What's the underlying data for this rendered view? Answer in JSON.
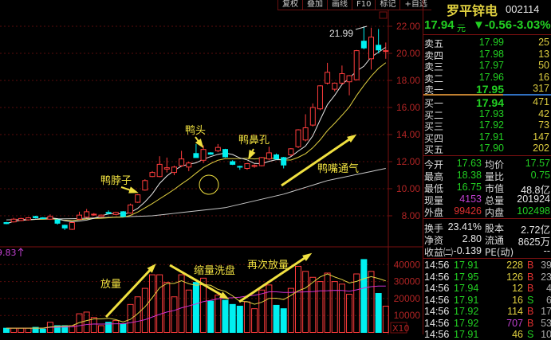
{
  "toolbar": {
    "buttons": [
      "复权",
      "叠加",
      "画线",
      "F10",
      "标记",
      "+自选"
    ]
  },
  "stock": {
    "name": "罗平锌电",
    "code": "002114",
    "price": "17.94",
    "unit": "元",
    "change": "▼-0.56",
    "change_pct": "-3.03%"
  },
  "asks": [
    {
      "label": "卖五",
      "price": "17.99",
      "qty": "25"
    },
    {
      "label": "卖四",
      "price": "17.98",
      "qty": "13"
    },
    {
      "label": "卖三",
      "price": "17.97",
      "qty": "50"
    },
    {
      "label": "卖二",
      "price": "17.96",
      "qty": "16"
    },
    {
      "label": "卖一",
      "price": "17.95",
      "qty": "317"
    }
  ],
  "bids": [
    {
      "label": "买一",
      "price": "17.94",
      "qty": "471"
    },
    {
      "label": "买二",
      "price": "17.93",
      "qty": "42"
    },
    {
      "label": "买三",
      "price": "17.92",
      "qty": "73"
    },
    {
      "label": "买四",
      "price": "17.91",
      "qty": "147"
    },
    {
      "label": "买五",
      "price": "17.90",
      "qty": "202"
    }
  ],
  "stats": [
    {
      "l1": "今开",
      "v1": "17.63",
      "c1": "g",
      "l2": "均价",
      "v2": "17.57",
      "c2": "g"
    },
    {
      "l1": "最高",
      "v1": "18.38",
      "c1": "g",
      "l2": "量比",
      "v2": "0.75",
      "c2": "g"
    },
    {
      "l1": "最低",
      "v1": "16.75",
      "c1": "g",
      "l2": "市值",
      "v2": "48.8亿",
      "c2": "w"
    },
    {
      "l1": "现量",
      "v1": "4153",
      "c1": "m",
      "l2": "总量",
      "v2": "201924",
      "c2": "w"
    },
    {
      "l1": "外盘",
      "v1": "99426",
      "c1": "r",
      "l2": "内盘",
      "v2": "102498",
      "c2": "g"
    }
  ],
  "stats2": [
    {
      "l1": "换手",
      "v1": "23.41%",
      "l2": "股本",
      "v2": "2.72亿"
    },
    {
      "l1": "净资",
      "v1": "2.80",
      "l2": "流通",
      "v2": "8625万"
    },
    {
      "l1": "收益㈡",
      "v1": "-0.139",
      "l2": "PE(动)",
      "v2": "--"
    }
  ],
  "trades": [
    {
      "time": "14:56",
      "price": "17.91",
      "vol": "228",
      "side": "B",
      "count": "39",
      "vol_color": "y"
    },
    {
      "time": "14:56",
      "price": "17.95",
      "vol": "126",
      "side": "B",
      "count": "23",
      "vol_color": "y"
    },
    {
      "time": "14:56",
      "price": "17.94",
      "vol": "12",
      "side": "B",
      "count": "4",
      "vol_color": "y"
    },
    {
      "time": "14:56",
      "price": "17.91",
      "vol": "16",
      "side": "S",
      "count": "6",
      "vol_color": "y"
    },
    {
      "time": "14:56",
      "price": "17.92",
      "vol": "114",
      "side": "B",
      "count": "17",
      "vol_color": "y"
    },
    {
      "time": "14:56",
      "price": "17.92",
      "vol": "707",
      "side": "B",
      "count": "53",
      "vol_color": "m"
    },
    {
      "time": "14:56",
      "price": "17.91",
      "vol": "46",
      "side": "S",
      "count": "10",
      "vol_color": "y"
    }
  ],
  "annotations": {
    "high_label": "21.99",
    "neck": "鸭脖子",
    "head": "鸭头",
    "nostril": "鸭鼻孔",
    "beak": "鸭嘴通气",
    "volume_up": "放量",
    "shrink_wash": "缩量洗盘",
    "volume_again": "再次放量",
    "volume_indicator": "9.83"
  },
  "colors": {
    "up": "#ff3c3c",
    "down": "#00f0f0",
    "ma5": "#e8e8e8",
    "ma10": "#e0d040",
    "ma_long": "#c8c8c8",
    "vol_ma_short": "#e0d040",
    "vol_ma_long": "#d030d0",
    "grid": "#5a0c0c",
    "axis_text": "#b02424",
    "annotation": "#f0e040"
  },
  "chart_data": {
    "type": "candlestick",
    "price_axis": {
      "ticks": [
        "22.00",
        "20.00",
        "18.00",
        "16.00",
        "14.00",
        "12.00",
        "10.00",
        "8.00"
      ],
      "range": [
        7,
        22
      ]
    },
    "volume_axis": {
      "ticks": [
        "40000",
        "30000",
        "20000",
        "10000"
      ],
      "unit_label": "X10",
      "range": [
        0,
        45000
      ]
    },
    "ohlc": [
      [
        7.5,
        7.55,
        7.38,
        7.42
      ],
      [
        7.55,
        7.85,
        7.5,
        7.75
      ],
      [
        7.65,
        7.85,
        7.6,
        7.8
      ],
      [
        7.7,
        7.9,
        7.65,
        7.85
      ],
      [
        7.95,
        8.0,
        7.8,
        7.85
      ],
      [
        7.85,
        7.9,
        7.78,
        7.82
      ],
      [
        7.75,
        8.1,
        7.7,
        7.95
      ],
      [
        7.7,
        7.75,
        7.35,
        7.45
      ],
      [
        7.3,
        7.35,
        6.95,
        7.1
      ],
      [
        7.0,
        7.55,
        6.95,
        7.5
      ],
      [
        7.75,
        8.3,
        7.7,
        8.05
      ],
      [
        7.9,
        8.5,
        7.85,
        8.3
      ],
      [
        8.08,
        8.2,
        8.0,
        8.12
      ],
      [
        7.95,
        8.1,
        7.9,
        8.05
      ],
      [
        8.25,
        8.4,
        8.1,
        8.18
      ],
      [
        8.1,
        8.3,
        8.05,
        8.25
      ],
      [
        8.3,
        8.35,
        7.9,
        7.95
      ],
      [
        8.2,
        8.9,
        8.15,
        8.8
      ],
      [
        9.0,
        9.6,
        8.95,
        9.55
      ],
      [
        9.9,
        10.7,
        9.85,
        10.6
      ],
      [
        10.9,
        11.3,
        10.85,
        11.2
      ],
      [
        10.9,
        12.4,
        10.85,
        11.8
      ],
      [
        11.45,
        12.3,
        11.2,
        11.55
      ],
      [
        11.2,
        11.7,
        11.0,
        11.6
      ],
      [
        11.7,
        12.8,
        11.6,
        12.2
      ],
      [
        11.6,
        12.0,
        11.3,
        11.9
      ],
      [
        12.6,
        13.3,
        12.3,
        12.3
      ],
      [
        12.1,
        13.2,
        11.9,
        12.9
      ],
      [
        12.65,
        12.7,
        12.5,
        12.55
      ],
      [
        12.8,
        13.3,
        12.7,
        13.05
      ],
      [
        12.9,
        12.95,
        12.3,
        12.35
      ],
      [
        12.0,
        12.1,
        11.75,
        11.8
      ],
      [
        11.65,
        11.7,
        11.4,
        11.6
      ],
      [
        11.5,
        11.9,
        11.4,
        11.85
      ],
      [
        11.65,
        11.8,
        11.55,
        11.72
      ],
      [
        11.7,
        12.35,
        11.65,
        12.3
      ],
      [
        12.2,
        13.1,
        12.1,
        12.65
      ],
      [
        12.5,
        12.6,
        12.15,
        12.2
      ],
      [
        12.3,
        12.35,
        11.5,
        11.75
      ],
      [
        12.5,
        13.0,
        12.4,
        12.95
      ],
      [
        13.1,
        14.4,
        13.0,
        14.35
      ],
      [
        13.6,
        15.5,
        13.5,
        14.5
      ],
      [
        14.7,
        16.3,
        14.6,
        16.0
      ],
      [
        15.9,
        17.65,
        15.8,
        17.6
      ],
      [
        17.8,
        19.3,
        17.7,
        18.6
      ],
      [
        17.35,
        17.85,
        17.2,
        17.8
      ],
      [
        17.8,
        19.1,
        17.7,
        18.5
      ],
      [
        17.9,
        18.4,
        16.9,
        18.35
      ],
      [
        18.05,
        20.25,
        18.0,
        20.2
      ],
      [
        20.9,
        21.99,
        20.3,
        20.4
      ],
      [
        19.6,
        21.9,
        18.8,
        21.2
      ],
      [
        20.6,
        21.8,
        20.0,
        20.25
      ],
      [
        20.15,
        20.8,
        19.6,
        20.2
      ]
    ],
    "volume": [
      2500,
      2500,
      2500,
      2500,
      3000,
      2000,
      6000,
      4000,
      4000,
      4000,
      11000,
      12000,
      8800,
      4000,
      6000,
      7000,
      5000,
      16500,
      21000,
      26000,
      34000,
      34000,
      29500,
      21000,
      34000,
      25000,
      29500,
      32000,
      18500,
      22000,
      19000,
      16500,
      15500,
      18000,
      14000,
      25000,
      28000,
      16000,
      14000,
      26000,
      39000,
      36000,
      32500,
      30000,
      35000,
      30000,
      28500,
      22500,
      34500,
      43000,
      36000,
      23000,
      15500
    ],
    "ma_long": [
      [
        0,
        7.7
      ],
      [
        10,
        7.8
      ],
      [
        20,
        8.0
      ],
      [
        30,
        8.6
      ],
      [
        38,
        9.6
      ],
      [
        44,
        10.6
      ],
      [
        52,
        11.5
      ]
    ]
  }
}
